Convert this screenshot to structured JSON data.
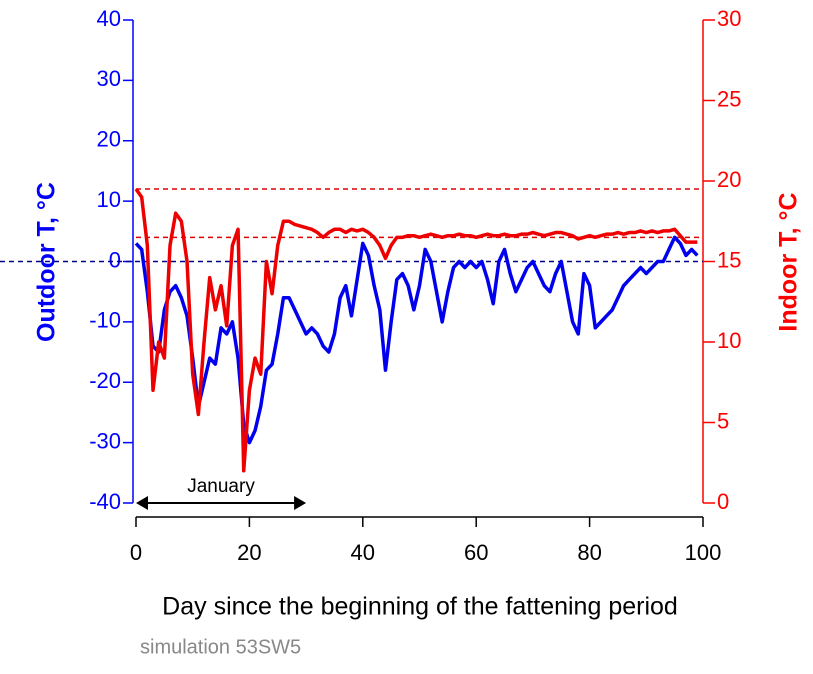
{
  "chart_data": {
    "type": "line",
    "xlabel": "Day since the beginning of the fattening period",
    "ylabel": "Outdoor T, °C",
    "y2label": "Indoor T, °C",
    "note": "simulation 53SW5",
    "xlim": [
      0,
      100
    ],
    "xticks": [
      0,
      20,
      40,
      60,
      80,
      100
    ],
    "ylim": [
      -40,
      40
    ],
    "yticks": [
      -40,
      -30,
      -20,
      -10,
      0,
      10,
      20,
      30,
      40
    ],
    "y2lim": [
      0,
      30
    ],
    "y2ticks": [
      0,
      5,
      10,
      15,
      20,
      25,
      30
    ],
    "ycolor": "#0000ff",
    "y2color": "#ff0000",
    "x": [
      0,
      1,
      2,
      3,
      4,
      5,
      6,
      7,
      8,
      9,
      10,
      11,
      12,
      13,
      14,
      15,
      16,
      17,
      18,
      19,
      20,
      21,
      22,
      23,
      24,
      25,
      26,
      27,
      28,
      29,
      30,
      31,
      32,
      33,
      34,
      35,
      36,
      37,
      38,
      39,
      40,
      41,
      42,
      43,
      44,
      45,
      46,
      47,
      48,
      49,
      50,
      51,
      52,
      53,
      54,
      55,
      56,
      57,
      58,
      59,
      60,
      61,
      62,
      63,
      64,
      65,
      66,
      67,
      68,
      69,
      70,
      71,
      72,
      73,
      74,
      75,
      76,
      77,
      78,
      79,
      80,
      81,
      82,
      83,
      84,
      85,
      86,
      87,
      88,
      89,
      90,
      91,
      92,
      93,
      94,
      95,
      96,
      97,
      98,
      99
    ],
    "series": [
      {
        "name": "Outdoor",
        "color": "#0000ee",
        "axis": "y",
        "values": [
          3,
          2,
          -5,
          -14,
          -15,
          -8,
          -5,
          -4,
          -6,
          -9,
          -16,
          -24,
          -20,
          -16,
          -17,
          -11,
          -12,
          -10,
          -16,
          -27,
          -30,
          -28,
          -24,
          -18,
          -17,
          -12,
          -6,
          -6,
          -8,
          -10,
          -12,
          -11,
          -12,
          -14,
          -15,
          -12,
          -6,
          -4,
          -9,
          -3,
          3,
          1,
          -4,
          -8,
          -18,
          -10,
          -3,
          -2,
          -4,
          -8,
          -4,
          2,
          0,
          -5,
          -10,
          -5,
          -1,
          0,
          -1,
          0,
          -1,
          0,
          -3,
          -7,
          0,
          2,
          -2,
          -5,
          -3,
          -1,
          0,
          -2,
          -4,
          -5,
          -2,
          0,
          -5,
          -10,
          -12,
          -2,
          -4,
          -11,
          -10,
          -9,
          -8,
          -6,
          -4,
          -3,
          -2,
          -1,
          -2,
          -1,
          0,
          0,
          2,
          4,
          3,
          1,
          2,
          1
        ]
      },
      {
        "name": "Indoor",
        "color": "#ee0000",
        "axis": "y2",
        "values": [
          19.5,
          19,
          16,
          7,
          10,
          9,
          16,
          18,
          17.5,
          15,
          8,
          5.5,
          10,
          14,
          12,
          13.5,
          11,
          16,
          17,
          2,
          7,
          9,
          8,
          15,
          13,
          16,
          17.5,
          17.5,
          17.3,
          17.2,
          17.1,
          17,
          16.8,
          16.5,
          16.8,
          17,
          17,
          16.8,
          17,
          16.9,
          17,
          16.8,
          16.5,
          16,
          15.2,
          16,
          16.5,
          16.5,
          16.6,
          16.6,
          16.5,
          16.6,
          16.7,
          16.6,
          16.5,
          16.6,
          16.6,
          16.7,
          16.6,
          16.6,
          16.5,
          16.6,
          16.7,
          16.6,
          16.6,
          16.7,
          16.6,
          16.6,
          16.7,
          16.7,
          16.8,
          16.7,
          16.6,
          16.7,
          16.8,
          16.8,
          16.7,
          16.6,
          16.4,
          16.5,
          16.6,
          16.5,
          16.6,
          16.7,
          16.7,
          16.8,
          16.7,
          16.8,
          16.8,
          16.9,
          16.8,
          16.9,
          16.8,
          16.9,
          16.9,
          17,
          16.6,
          16.2,
          16.2,
          16.2
        ]
      }
    ],
    "reference_lines": [
      {
        "axis": "y",
        "value": 0,
        "color": "#00008b"
      },
      {
        "axis": "y2",
        "value": 19.5,
        "color": "#dd0000"
      },
      {
        "axis": "y2",
        "value": 16.5,
        "color": "#dd0000"
      }
    ],
    "annotation": {
      "text": "January",
      "x": [
        0,
        30
      ]
    }
  }
}
